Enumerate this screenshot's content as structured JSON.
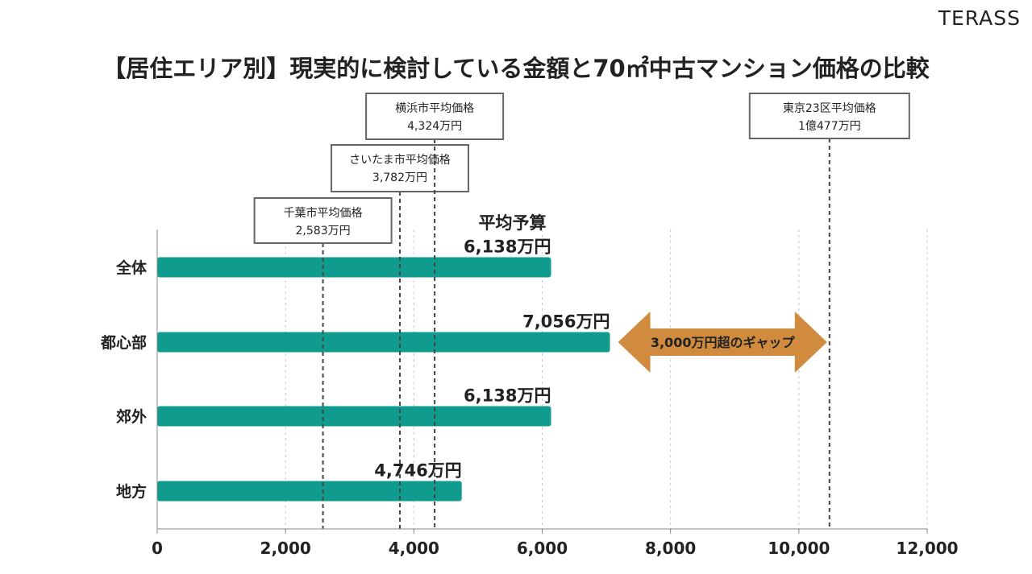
{
  "logo": "TERASS",
  "title": "【居住エリア別】現実的に検討している金額と70㎡中古マンション価格の比較",
  "colors": {
    "bar": "#0f9c8e",
    "arrow": "#d18b3e",
    "reference_line": "#444444",
    "grid": "#c8c8c8",
    "axis": "#888888",
    "text": "#222222"
  },
  "chart_data": {
    "type": "bar",
    "orientation": "horizontal",
    "categories": [
      "全体",
      "都心部",
      "郊外",
      "地方"
    ],
    "values": [
      6138,
      7056,
      6138,
      4746
    ],
    "value_labels": [
      "6,138万円",
      "7,056万円",
      "6,138万円",
      "4,746万円"
    ],
    "first_bar_heading": "平均予算",
    "xlim": [
      0,
      12000
    ],
    "xticks": [
      0,
      2000,
      4000,
      6000,
      8000,
      10000,
      12000
    ],
    "xtick_labels": [
      "0",
      "2,000",
      "4,000",
      "6,000",
      "8,000",
      "10,000",
      "12,000"
    ],
    "grid": true,
    "reference_lines": [
      {
        "name": "千葉市平均価格",
        "label": "2,583万円",
        "value": 2583
      },
      {
        "name": "さいたま市平均価格",
        "label": "3,782万円",
        "value": 3782
      },
      {
        "name": "横浜市平均価格",
        "label": "4,324万円",
        "value": 4324
      },
      {
        "name": "東京23区平均価格",
        "label": "1億477万円",
        "value": 10477
      }
    ],
    "annotation": {
      "text": "3,000万円超のギャップ",
      "category": "都心部",
      "from": 7056,
      "to": 10477
    }
  }
}
